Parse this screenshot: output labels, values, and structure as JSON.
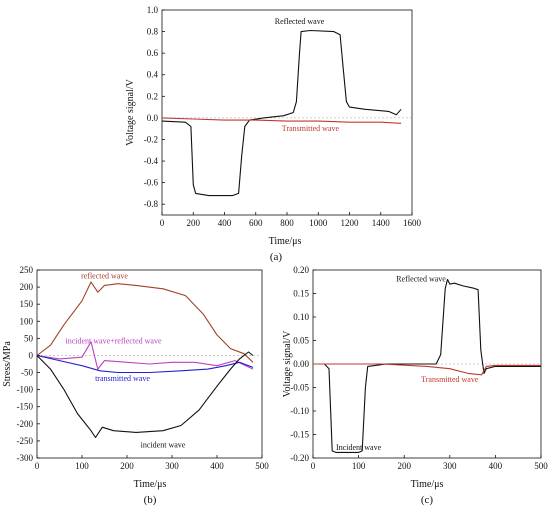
{
  "chart_data": [
    {
      "id": "a",
      "type": "line",
      "panel_label": "(a)",
      "xlabel": "Time/μs",
      "ylabel": "Voltage signal/V",
      "xlim": [
        0,
        1600
      ],
      "ylim": [
        -0.9,
        1.0
      ],
      "xticks": [
        0,
        200,
        400,
        600,
        800,
        1000,
        1200,
        1400,
        1600
      ],
      "yticks": [
        -0.8,
        -0.6,
        -0.4,
        -0.2,
        0.0,
        0.2,
        0.4,
        0.6,
        0.8,
        1.0
      ],
      "series": [
        {
          "name": "Reflected wave",
          "color": "#111111",
          "label_at": [
            880,
            0.87
          ],
          "points": [
            [
              0,
              -0.03
            ],
            [
              150,
              -0.04
            ],
            [
              185,
              -0.08
            ],
            [
              200,
              -0.62
            ],
            [
              215,
              -0.7
            ],
            [
              300,
              -0.72
            ],
            [
              450,
              -0.72
            ],
            [
              490,
              -0.7
            ],
            [
              510,
              -0.35
            ],
            [
              530,
              -0.08
            ],
            [
              560,
              -0.02
            ],
            [
              650,
              0.0
            ],
            [
              780,
              0.02
            ],
            [
              840,
              0.05
            ],
            [
              860,
              0.15
            ],
            [
              880,
              0.6
            ],
            [
              890,
              0.8
            ],
            [
              950,
              0.81
            ],
            [
              1100,
              0.8
            ],
            [
              1140,
              0.77
            ],
            [
              1160,
              0.45
            ],
            [
              1180,
              0.15
            ],
            [
              1200,
              0.1
            ],
            [
              1300,
              0.08
            ],
            [
              1450,
              0.06
            ],
            [
              1500,
              0.03
            ],
            [
              1530,
              0.08
            ]
          ]
        },
        {
          "name": "Transmitted wave",
          "color": "#c0392b",
          "label_at": [
            950,
            -0.12
          ],
          "points": [
            [
              0,
              0.0
            ],
            [
              200,
              -0.01
            ],
            [
              400,
              -0.02
            ],
            [
              600,
              -0.02
            ],
            [
              800,
              -0.03
            ],
            [
              1000,
              -0.03
            ],
            [
              1200,
              -0.04
            ],
            [
              1400,
              -0.04
            ],
            [
              1530,
              -0.05
            ]
          ]
        }
      ]
    },
    {
      "id": "b",
      "type": "line",
      "panel_label": "(b)",
      "xlabel": "Time/μs",
      "ylabel": "Stress/MPa",
      "xlim": [
        0,
        500
      ],
      "ylim": [
        -300,
        250
      ],
      "xticks": [
        0,
        100,
        200,
        300,
        400,
        500
      ],
      "yticks": [
        -300,
        -250,
        -200,
        -150,
        -100,
        -50,
        0,
        50,
        100,
        150,
        200,
        250
      ],
      "series": [
        {
          "name": "reflected wave",
          "color": "#a0422a",
          "label_at": [
            150,
            225
          ],
          "points": [
            [
              0,
              0
            ],
            [
              30,
              30
            ],
            [
              60,
              90
            ],
            [
              100,
              160
            ],
            [
              120,
              215
            ],
            [
              135,
              185
            ],
            [
              150,
              205
            ],
            [
              180,
              210
            ],
            [
              220,
              205
            ],
            [
              280,
              195
            ],
            [
              330,
              175
            ],
            [
              370,
              120
            ],
            [
              400,
              60
            ],
            [
              430,
              20
            ],
            [
              460,
              5
            ],
            [
              480,
              -20
            ]
          ]
        },
        {
          "name": "incident wave+reflected wave",
          "color": "#c040c0",
          "label_at": [
            170,
            35
          ],
          "points": [
            [
              0,
              0
            ],
            [
              50,
              -10
            ],
            [
              100,
              -5
            ],
            [
              120,
              40
            ],
            [
              135,
              -40
            ],
            [
              150,
              -15
            ],
            [
              200,
              -20
            ],
            [
              250,
              -25
            ],
            [
              300,
              -20
            ],
            [
              350,
              -20
            ],
            [
              400,
              -30
            ],
            [
              440,
              -15
            ],
            [
              480,
              -40
            ]
          ]
        },
        {
          "name": "transmitted wave",
          "color": "#2222cc",
          "label_at": [
            190,
            -75
          ],
          "points": [
            [
              0,
              0
            ],
            [
              50,
              -15
            ],
            [
              100,
              -30
            ],
            [
              140,
              -45
            ],
            [
              180,
              -50
            ],
            [
              250,
              -50
            ],
            [
              320,
              -45
            ],
            [
              380,
              -40
            ],
            [
              420,
              -30
            ],
            [
              450,
              -20
            ],
            [
              480,
              -35
            ]
          ]
        },
        {
          "name": "incident wave",
          "color": "#111111",
          "label_at": [
            280,
            -270
          ],
          "points": [
            [
              0,
              0
            ],
            [
              30,
              -40
            ],
            [
              60,
              -100
            ],
            [
              90,
              -170
            ],
            [
              120,
              -220
            ],
            [
              130,
              -240
            ],
            [
              145,
              -210
            ],
            [
              170,
              -220
            ],
            [
              220,
              -225
            ],
            [
              280,
              -220
            ],
            [
              320,
              -205
            ],
            [
              360,
              -160
            ],
            [
              400,
              -90
            ],
            [
              430,
              -40
            ],
            [
              450,
              -10
            ],
            [
              470,
              10
            ],
            [
              480,
              0
            ]
          ]
        }
      ]
    },
    {
      "id": "c",
      "type": "line",
      "panel_label": "(c)",
      "xlabel": "Time/μs",
      "ylabel": "Voltage signal/V",
      "xlim": [
        0,
        500
      ],
      "ylim": [
        -0.2,
        0.2
      ],
      "xticks": [
        0,
        100,
        200,
        300,
        400,
        500
      ],
      "yticks": [
        -0.2,
        -0.15,
        -0.1,
        -0.05,
        0.0,
        0.05,
        0.1,
        0.15,
        0.2
      ],
      "series": [
        {
          "name": "Reflected wave",
          "color": "#111111",
          "label_at": [
            237,
            0.176
          ],
          "points": [
            [
              0,
              0
            ],
            [
              25,
              0
            ],
            [
              35,
              -0.01
            ],
            [
              42,
              -0.185
            ],
            [
              50,
              -0.188
            ],
            [
              100,
              -0.188
            ],
            [
              108,
              -0.185
            ],
            [
              115,
              -0.05
            ],
            [
              120,
              -0.005
            ],
            [
              160,
              0
            ],
            [
              270,
              0
            ],
            [
              280,
              0.02
            ],
            [
              290,
              0.16
            ],
            [
              295,
              0.18
            ],
            [
              300,
              0.17
            ],
            [
              310,
              0.172
            ],
            [
              330,
              0.166
            ],
            [
              350,
              0.162
            ],
            [
              362,
              0.158
            ],
            [
              368,
              0.03
            ],
            [
              375,
              -0.02
            ],
            [
              380,
              -0.01
            ],
            [
              400,
              -0.005
            ],
            [
              500,
              -0.005
            ]
          ]
        },
        {
          "name": "Transmitted wave",
          "color": "#c0392b",
          "label_at": [
            300,
            -0.038
          ],
          "points": [
            [
              0,
              0
            ],
            [
              150,
              0
            ],
            [
              250,
              -0.005
            ],
            [
              300,
              -0.01
            ],
            [
              340,
              -0.02
            ],
            [
              370,
              -0.023
            ],
            [
              380,
              -0.005
            ],
            [
              400,
              -0.003
            ],
            [
              500,
              -0.003
            ]
          ]
        },
        {
          "name": "Incident wave",
          "color": "#111111",
          "label_at": [
            100,
            -0.183
          ],
          "points": []
        }
      ]
    }
  ]
}
